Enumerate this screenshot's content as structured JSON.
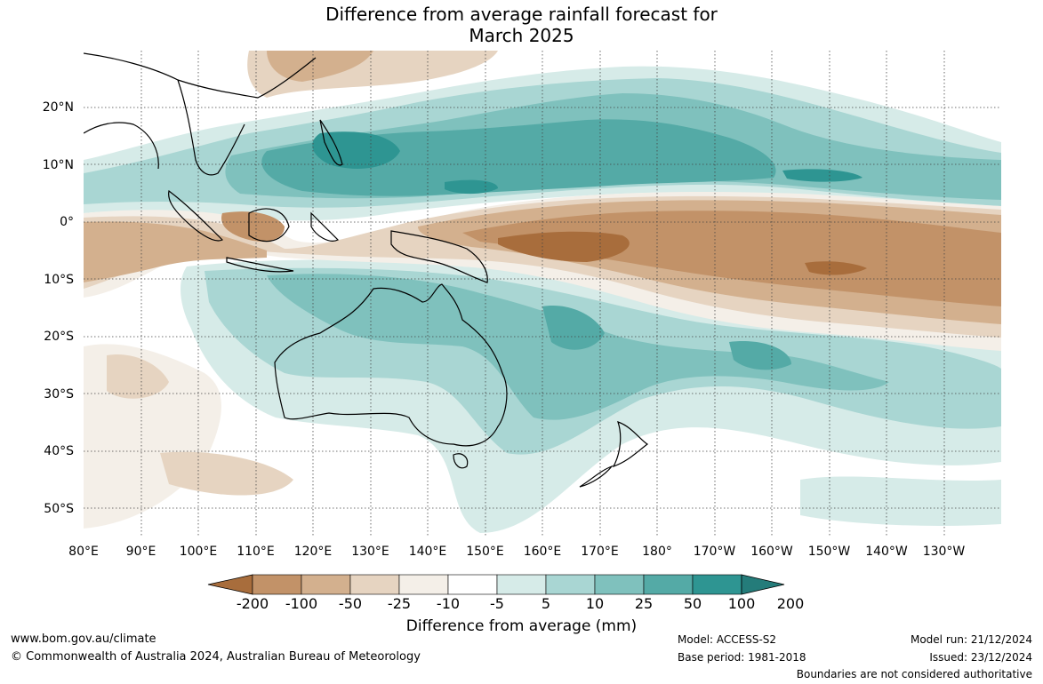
{
  "title_line1": "Difference from average rainfall forecast for",
  "title_line2": "March 2025",
  "lon_ticks": [
    {
      "lon": 80,
      "label": "80°E"
    },
    {
      "lon": 90,
      "label": "90°E"
    },
    {
      "lon": 100,
      "label": "100°E"
    },
    {
      "lon": 110,
      "label": "110°E"
    },
    {
      "lon": 120,
      "label": "120°E"
    },
    {
      "lon": 130,
      "label": "130°E"
    },
    {
      "lon": 140,
      "label": "140°E"
    },
    {
      "lon": 150,
      "label": "150°E"
    },
    {
      "lon": 160,
      "label": "160°E"
    },
    {
      "lon": 170,
      "label": "170°E"
    },
    {
      "lon": 180,
      "label": "180°"
    },
    {
      "lon": 190,
      "label": "170°W"
    },
    {
      "lon": 200,
      "label": "160°W"
    },
    {
      "lon": 210,
      "label": "150°W"
    },
    {
      "lon": 220,
      "label": "140°W"
    },
    {
      "lon": 230,
      "label": "130°W"
    }
  ],
  "lat_ticks": [
    {
      "lat": 20,
      "label": "20°N"
    },
    {
      "lat": 10,
      "label": "10°N"
    },
    {
      "lat": 0,
      "label": "0°"
    },
    {
      "lat": -10,
      "label": "10°S"
    },
    {
      "lat": -20,
      "label": "20°S"
    },
    {
      "lat": -30,
      "label": "30°S"
    },
    {
      "lat": -40,
      "label": "40°S"
    },
    {
      "lat": -50,
      "label": "50°S"
    }
  ],
  "colorbar": {
    "colors": [
      "#a86d3c",
      "#c29268",
      "#d3b08e",
      "#e6d4c1",
      "#f4efe8",
      "#ffffff",
      "#d6ebe8",
      "#a9d6d3",
      "#7fc1bd",
      "#54aaa6",
      "#2e9592",
      "#247c7a"
    ],
    "labels": [
      "-200",
      "-100",
      "-50",
      "-25",
      "-10",
      "-5",
      "5",
      "10",
      "25",
      "50",
      "100",
      "200"
    ],
    "title": "Difference from average (mm)"
  },
  "footer": {
    "website": "www.bom.gov.au/climate",
    "copyright": "© Commonwealth of Australia 2024, Australian Bureau of Meteorology",
    "model": "Model: ACCESS-S2",
    "base_period": "Base period: 1981-2018",
    "model_run": "Model run: 21/12/2024",
    "issued": "Issued: 23/12/2024",
    "disclaimer": "Boundaries are not considered authoritative"
  }
}
